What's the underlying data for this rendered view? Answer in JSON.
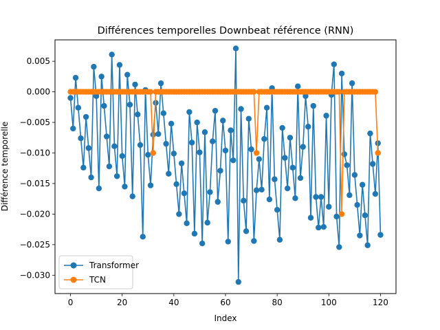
{
  "chart_data": {
    "type": "line",
    "title": "Différences temporelles Downbeat référence (RNN)",
    "xlabel": "Index",
    "ylabel": "Différence temporelle",
    "xlim": [
      -6,
      126
    ],
    "ylim": [
      -0.033,
      0.0085
    ],
    "xticks": [
      0,
      20,
      40,
      60,
      80,
      100,
      120
    ],
    "yticks": [
      -0.03,
      -0.025,
      -0.02,
      -0.015,
      -0.01,
      -0.005,
      0.0,
      0.005
    ],
    "ytick_labels": [
      "−0.030",
      "−0.025",
      "−0.020",
      "−0.015",
      "−0.010",
      "−0.005",
      "0.000",
      "0.005"
    ],
    "legend_position": "lower-left",
    "grid": false,
    "series": [
      {
        "name": "Transformer",
        "color": "#1f77b4",
        "marker": "circle",
        "values": [
          -0.001,
          -0.006,
          0.0023,
          -0.0026,
          -0.0076,
          -0.0124,
          -0.0041,
          -0.0092,
          -0.014,
          0.0041,
          -0.0007,
          -0.0158,
          0.0025,
          -0.0023,
          -0.0073,
          -0.0122,
          0.0061,
          -0.0089,
          -0.0138,
          0.0044,
          -0.0105,
          -0.0155,
          0.0028,
          -0.0021,
          -0.0171,
          0.0012,
          -0.0037,
          -0.0087,
          -0.0237,
          0.0003,
          -0.0103,
          -0.0153,
          -0.007,
          -0.0018,
          -0.0069,
          0.0014,
          -0.0035,
          -0.0085,
          -0.0134,
          -0.0052,
          -0.0101,
          -0.0151,
          -0.02,
          -0.0117,
          -0.0166,
          -0.0215,
          -0.0033,
          -0.0083,
          -0.0232,
          -0.005,
          -0.0099,
          -0.0248,
          -0.0066,
          -0.0214,
          -0.0164,
          -0.0081,
          -0.0031,
          -0.018,
          -0.0129,
          -0.0047,
          -0.0096,
          -0.0245,
          -0.0063,
          -0.0112,
          0.0071,
          -0.0311,
          -0.0028,
          -0.0178,
          -0.0228,
          -0.0044,
          -0.0094,
          -0.0244,
          -0.0161,
          -0.011,
          -0.016,
          -0.0077,
          -0.0026,
          -0.0176,
          0.0006,
          -0.0143,
          -0.0193,
          -0.0242,
          -0.0059,
          -0.0108,
          -0.0158,
          -0.0075,
          -0.0124,
          -0.0174,
          0.0009,
          -0.0141,
          -0.009,
          -0.0007,
          -0.0057,
          -0.0206,
          -0.0023,
          -0.0172,
          -0.0222,
          -0.0172,
          -0.0221,
          -0.0039,
          -0.0188,
          -0.0005,
          0.0045,
          -0.0204,
          -0.0254,
          0.003,
          -0.0102,
          -0.012,
          -0.0169,
          0.0014,
          -0.0136,
          -0.0185,
          -0.0235,
          -0.0152,
          -0.0202,
          -0.0251,
          -0.0068,
          -0.0118,
          -0.0167,
          -0.0084,
          -0.0234
        ]
      },
      {
        "name": "TCN",
        "color": "#ff7f0e",
        "marker": "circle",
        "values": [
          0,
          0,
          0,
          0,
          0,
          0,
          0,
          0,
          0,
          0,
          0,
          0,
          0,
          0,
          0,
          0,
          0,
          0,
          0,
          0,
          0,
          0,
          0,
          0,
          0,
          0,
          0,
          0,
          0,
          0,
          0,
          0,
          -0.01,
          0,
          0,
          0,
          0,
          0,
          0,
          0,
          0,
          0,
          0,
          0,
          0,
          0,
          0,
          0,
          0,
          0,
          0,
          0,
          0,
          0,
          0,
          0,
          0,
          0,
          0,
          0,
          0,
          0,
          0,
          0,
          0,
          0,
          0,
          0,
          0,
          0,
          0,
          0,
          -0.01,
          0,
          0,
          0,
          0,
          0,
          0,
          0,
          0,
          0,
          0,
          0,
          0,
          0,
          0,
          0,
          0,
          0,
          0,
          0,
          0,
          0,
          0,
          0,
          0,
          0,
          0,
          0,
          0,
          0,
          0,
          0,
          0,
          -0.02,
          0,
          0,
          0,
          0,
          0,
          0,
          0,
          0,
          0,
          0,
          0,
          0,
          0,
          -0.01
        ]
      }
    ]
  }
}
